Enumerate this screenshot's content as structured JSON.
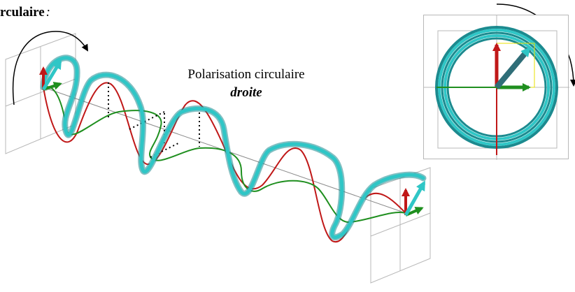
{
  "heading": {
    "text": "rculaire",
    "suffix": ":"
  },
  "caption": {
    "line1": "Polarisation circulaire",
    "line2": "droite"
  },
  "colors": {
    "helix": "#2fc6c6",
    "helix_shadow": "#1c8a8f",
    "electric_x": "#c01818",
    "electric_y": "#1f8f1f",
    "arrow_dark": "#2f6e78",
    "grid": "#b8b8b8",
    "guide": "#000000"
  }
}
